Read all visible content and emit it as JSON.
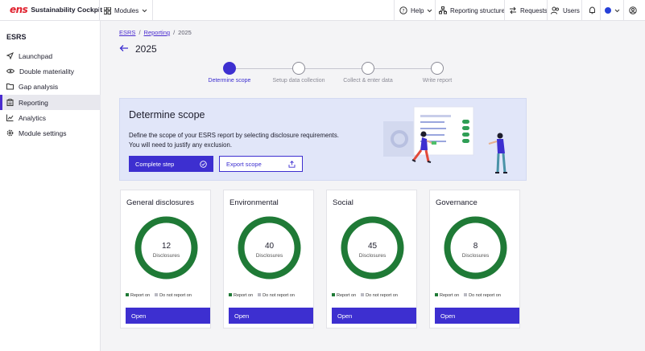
{
  "app": {
    "logo_mark": "ens",
    "logo_text": "Sustainability Cockpit"
  },
  "topbar": {
    "modules_label": "Modules",
    "help_label": "Help",
    "reporting_structure_label": "Reporting structure",
    "requests_label": "Requests",
    "users_label": "Users"
  },
  "sidebar": {
    "title": "ESRS",
    "items": [
      {
        "label": "Launchpad",
        "icon": "rocket-icon"
      },
      {
        "label": "Double materiality",
        "icon": "eye-icon"
      },
      {
        "label": "Gap analysis",
        "icon": "folder-icon"
      },
      {
        "label": "Reporting",
        "icon": "clipboard-icon",
        "active": true
      },
      {
        "label": "Analytics",
        "icon": "chart-icon"
      },
      {
        "label": "Module settings",
        "icon": "gear-icon"
      }
    ]
  },
  "breadcrumb": {
    "items": [
      "ESRS",
      "Reporting",
      "2025"
    ]
  },
  "page": {
    "title": "2025"
  },
  "stepper": {
    "steps": [
      {
        "label": "Determine scope",
        "active": true
      },
      {
        "label": "Setup data collection",
        "active": false
      },
      {
        "label": "Collect & enter data",
        "active": false
      },
      {
        "label": "Write report",
        "active": false
      }
    ]
  },
  "banner": {
    "title": "Determine scope",
    "description_line1": "Define the scope of your ESRS report by selecting disclosure requirements.",
    "description_line2": "You will need to justify any exclusion.",
    "complete_label": "Complete step",
    "export_label": "Export scope"
  },
  "cards": [
    {
      "title": "General disclosures",
      "count": "12",
      "unit": "Disclosures",
      "report_on_label": "Report on",
      "not_report_label": "Do not report on",
      "open_label": "Open",
      "report_on_fraction": 1.0
    },
    {
      "title": "Environmental",
      "count": "40",
      "unit": "Disclosures",
      "report_on_label": "Report on",
      "not_report_label": "Do not report on",
      "open_label": "Open",
      "report_on_fraction": 1.0
    },
    {
      "title": "Social",
      "count": "45",
      "unit": "Disclosures",
      "report_on_label": "Report on",
      "not_report_label": "Do not report on",
      "open_label": "Open",
      "report_on_fraction": 1.0
    },
    {
      "title": "Governance",
      "count": "8",
      "unit": "Disclosures",
      "report_on_label": "Report on",
      "not_report_label": "Do not report on",
      "open_label": "Open",
      "report_on_fraction": 1.0
    }
  ],
  "colors": {
    "accent": "#3d2fd0",
    "report_on": "#1f7a36",
    "not_report": "#b9b9c2",
    "banner_bg": "#e1e6f9",
    "logo_red": "#e0202d"
  }
}
